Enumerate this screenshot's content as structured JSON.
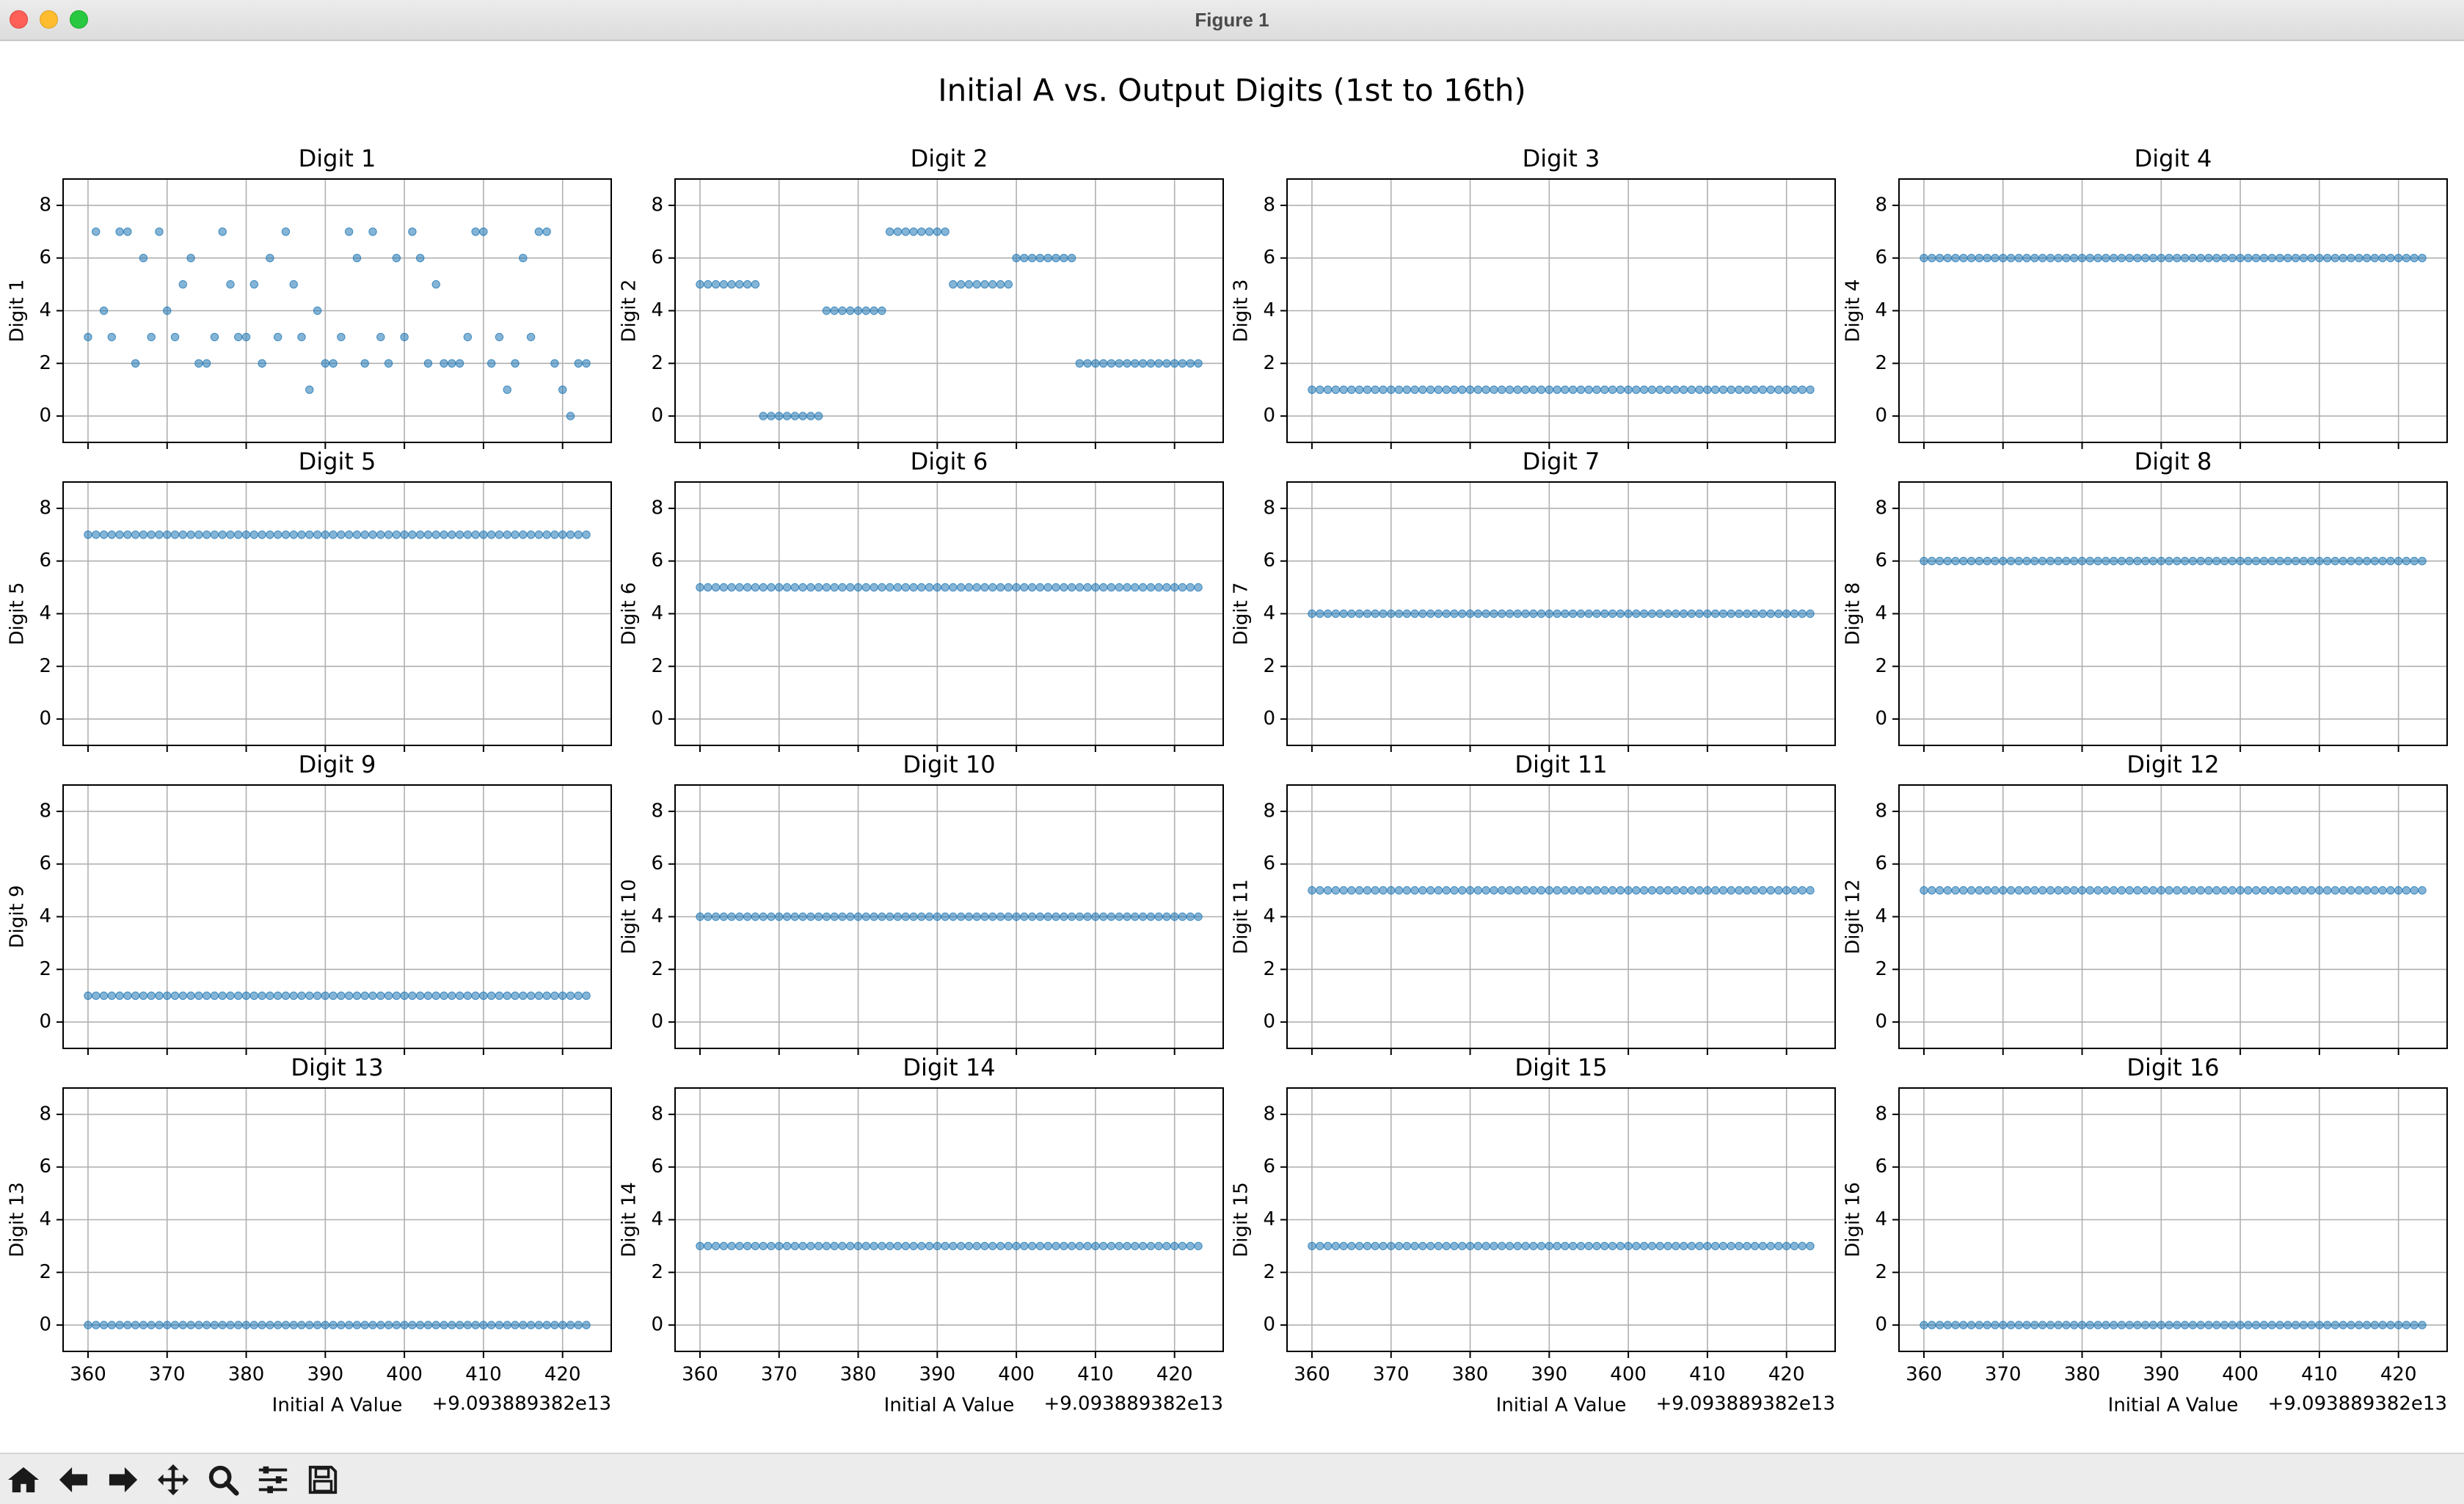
{
  "window": {
    "title": "Figure 1"
  },
  "toolbar": {
    "buttons": [
      {
        "icon": "home-icon"
      },
      {
        "icon": "back-arrow-icon"
      },
      {
        "icon": "forward-arrow-icon"
      },
      {
        "icon": "pan-move-icon"
      },
      {
        "icon": "zoom-magnifier-icon"
      },
      {
        "icon": "configure-subplots-icon"
      },
      {
        "icon": "save-disk-icon"
      }
    ]
  },
  "figure": {
    "suptitle": "Initial A vs. Output Digits (1st to 16th)",
    "xlabel": "Initial A Value",
    "offset_text": "+9.093889382e13",
    "marker_color": "#1f77b4",
    "grid": true
  },
  "chart_data": {
    "type": "scatter",
    "layout": "4x4 subplots, shared x axis",
    "x": [
      360,
      361,
      362,
      363,
      364,
      365,
      366,
      367,
      368,
      369,
      370,
      371,
      372,
      373,
      374,
      375,
      376,
      377,
      378,
      379,
      380,
      381,
      382,
      383,
      384,
      385,
      386,
      387,
      388,
      389,
      390,
      391,
      392,
      393,
      394,
      395,
      396,
      397,
      398,
      399,
      400,
      401,
      402,
      403,
      404,
      405,
      406,
      407,
      408,
      409,
      410,
      411,
      412,
      413,
      414,
      415,
      416,
      417,
      418,
      419,
      420,
      421,
      422,
      423
    ],
    "x_ticks": [
      360,
      370,
      380,
      390,
      400,
      410,
      420
    ],
    "x_offset": "+9.093889382e13",
    "xlim": [
      356.85,
      426.15
    ],
    "ylim": [
      -1,
      9
    ],
    "y_ticks": [
      0,
      2,
      4,
      6,
      8
    ],
    "series": [
      {
        "title": "Digit 1",
        "ylabel": "Digit 1",
        "values": [
          3,
          7,
          4,
          3,
          7,
          7,
          2,
          6,
          3,
          7,
          4,
          3,
          5,
          6,
          2,
          2,
          3,
          7,
          5,
          3,
          3,
          5,
          2,
          6,
          3,
          7,
          5,
          3,
          1,
          4,
          2,
          2,
          3,
          7,
          6,
          2,
          7,
          3,
          2,
          6,
          3,
          7,
          6,
          2,
          5,
          2,
          2,
          2,
          3,
          7,
          7,
          2,
          3,
          1,
          2,
          6,
          3,
          7,
          7,
          2,
          1,
          0,
          2,
          2
        ]
      },
      {
        "title": "Digit 2",
        "ylabel": "Digit 2",
        "values": [
          5,
          5,
          5,
          5,
          5,
          5,
          5,
          5,
          0,
          0,
          0,
          0,
          0,
          0,
          0,
          0,
          4,
          4,
          4,
          4,
          4,
          4,
          4,
          4,
          7,
          7,
          7,
          7,
          7,
          7,
          7,
          7,
          5,
          5,
          5,
          5,
          5,
          5,
          5,
          5,
          6,
          6,
          6,
          6,
          6,
          6,
          6,
          6,
          2,
          2,
          2,
          2,
          2,
          2,
          2,
          2,
          2,
          2,
          2,
          2,
          2,
          2,
          2,
          2
        ]
      },
      {
        "title": "Digit 3",
        "ylabel": "Digit 3",
        "constant": 1
      },
      {
        "title": "Digit 4",
        "ylabel": "Digit 4",
        "constant": 6
      },
      {
        "title": "Digit 5",
        "ylabel": "Digit 5",
        "constant": 7
      },
      {
        "title": "Digit 6",
        "ylabel": "Digit 6",
        "constant": 5
      },
      {
        "title": "Digit 7",
        "ylabel": "Digit 7",
        "constant": 4
      },
      {
        "title": "Digit 8",
        "ylabel": "Digit 8",
        "constant": 6
      },
      {
        "title": "Digit 9",
        "ylabel": "Digit 9",
        "constant": 1
      },
      {
        "title": "Digit 10",
        "ylabel": "Digit 10",
        "constant": 4
      },
      {
        "title": "Digit 11",
        "ylabel": "Digit 11",
        "constant": 5
      },
      {
        "title": "Digit 12",
        "ylabel": "Digit 12",
        "constant": 5
      },
      {
        "title": "Digit 13",
        "ylabel": "Digit 13",
        "constant": 0
      },
      {
        "title": "Digit 14",
        "ylabel": "Digit 14",
        "constant": 3
      },
      {
        "title": "Digit 15",
        "ylabel": "Digit 15",
        "constant": 3
      },
      {
        "title": "Digit 16",
        "ylabel": "Digit 16",
        "constant": 0
      }
    ]
  }
}
